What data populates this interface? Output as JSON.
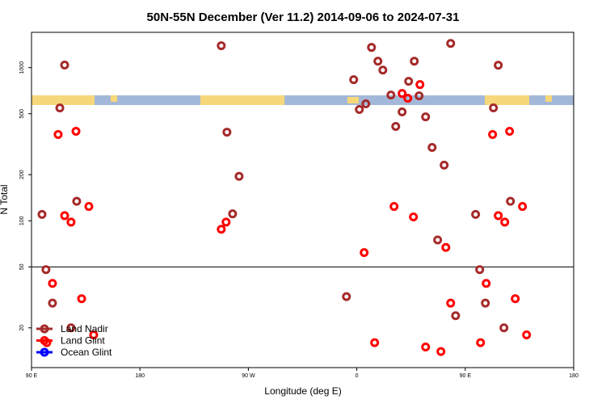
{
  "chart_data": {
    "type": "scatter",
    "title": "50N-55N December (Ver 11.2)   2014-09-06 to 2024-07-31",
    "xlabel": "Longitude (deg E)",
    "ylabel": "N Total",
    "xlim": [
      90,
      540
    ],
    "ylim": [
      11,
      1700
    ],
    "log_y": true,
    "xticks": [
      {
        "value": 90,
        "label": "90 E"
      },
      180,
      {
        "value": 270,
        "label": "90 W"
      },
      {
        "value": 360,
        "label": "0"
      },
      {
        "value": 450,
        "label": "90 E"
      },
      {
        "value": 540,
        "label": "180"
      }
    ],
    "yticks": [
      20,
      50,
      100,
      200,
      500,
      1000
    ],
    "hline": 50,
    "legend": "lower left",
    "series": [
      {
        "name": "Land Nadir",
        "color": "#a52a2a",
        "x": [
          117.5,
          113.5,
          98.7,
          102,
          107.4,
          127.5,
          122.8,
          247.5,
          252.2,
          262.3,
          256.9,
          351.4,
          357.4,
          362.1,
          367.5,
          372.2,
          377.5,
          381.6,
          388.3,
          392.3,
          397.6,
          403,
          407.7,
          411.7,
          417.1,
          422.5,
          432.5,
          427.1,
          437.9,
          442,
          458.6,
          462,
          466.7,
          473.4,
          477.4,
          482.1,
          487.5
        ],
        "values": [
          1040,
          545,
          110,
          48,
          29,
          134,
          20,
          1390,
          379,
          195,
          111,
          32,
          834,
          533,
          580,
          1355,
          1101,
          964,
          662,
          413,
          514,
          814,
          1101,
          654,
          477,
          301,
          231,
          75,
          1438,
          24,
          110,
          48,
          29,
          546,
          1037,
          20,
          134
        ]
      },
      {
        "name": "Land Glint",
        "color": "#ff0000",
        "x": [
          112.1,
          126.9,
          117.5,
          122.8,
          137.6,
          107.4,
          131.6,
          102.7,
          141.6,
          247.5,
          251.5,
          366.1,
          374.8,
          390.9,
          407,
          397.6,
          402.3,
          412.4,
          417.1,
          429.8,
          433.9,
          437.9,
          462.7,
          467.4,
          472.7,
          477.4,
          482.8,
          486.8,
          491.5,
          497.5,
          500.9
        ],
        "values": [
          366,
          384,
          108,
          98,
          124,
          39,
          31,
          16,
          18,
          88,
          98,
          62,
          16,
          124,
          106,
          678,
          631,
          775,
          15,
          14,
          67,
          29,
          16,
          39,
          366,
          108,
          98,
          384,
          31,
          124,
          18
        ]
      },
      {
        "name": "Ocean Glint",
        "color": "#0000ff",
        "x": [],
        "values": []
      }
    ]
  }
}
